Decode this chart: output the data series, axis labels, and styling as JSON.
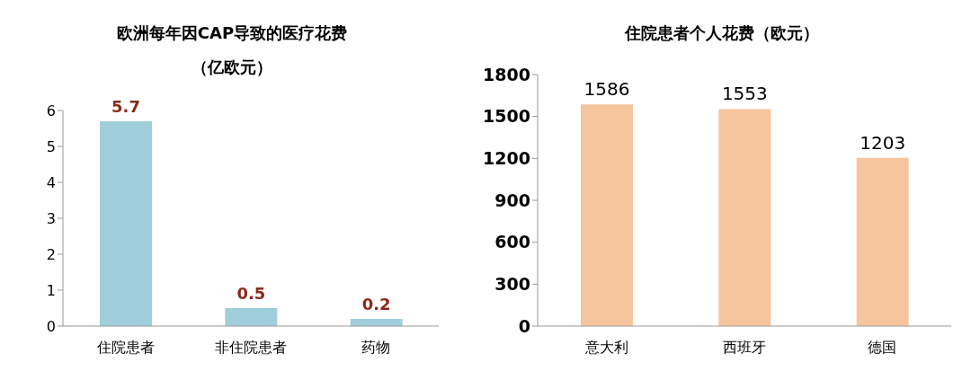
{
  "chart_data": [
    {
      "type": "bar",
      "title": "欧洲每年因CAP导致的医疗花费",
      "subtitle": "（亿欧元）",
      "categories": [
        "住院患者",
        "非住院患者",
        "药物"
      ],
      "values": [
        5.7,
        0.5,
        0.2
      ],
      "color": "#a0cedb",
      "ylim": [
        0,
        6
      ],
      "yticks": [
        0,
        1,
        2,
        3,
        4,
        5,
        6
      ],
      "grid": false,
      "data_labels": true
    },
    {
      "type": "bar",
      "title": "住院患者个人花费（欧元）",
      "categories": [
        "意大利",
        "西班牙",
        "德国"
      ],
      "values": [
        1586,
        1553,
        1203
      ],
      "color": "#f5c59e",
      "ylim": [
        0,
        1800
      ],
      "yticks": [
        0,
        300,
        600,
        900,
        1200,
        1500,
        1800
      ],
      "grid": false,
      "data_labels": true
    }
  ]
}
